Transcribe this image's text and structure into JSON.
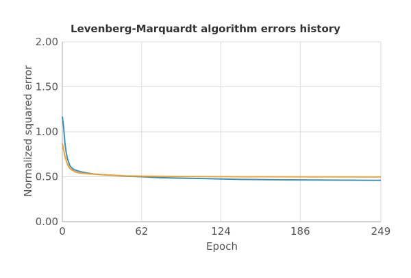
{
  "chart_data": {
    "type": "line",
    "title": "Levenberg-Marquardt algorithm errors history",
    "xlabel": "Epoch",
    "ylabel": "Normalized squared error",
    "xlim": [
      0,
      249
    ],
    "ylim": [
      0,
      2
    ],
    "x_ticks": [
      "0",
      "62",
      "124",
      "186",
      "249"
    ],
    "x_tick_values": [
      0,
      62,
      124,
      186,
      249
    ],
    "y_ticks": [
      "0.00",
      "0.50",
      "1.00",
      "1.50",
      "2.00"
    ],
    "y_tick_values": [
      0,
      0.5,
      1.0,
      1.5,
      2.0
    ],
    "grid": true,
    "series": [
      {
        "color": "#3a8fbf",
        "x": [
          0,
          1,
          2,
          3,
          4,
          5,
          6,
          8,
          10,
          12,
          15,
          20,
          25,
          30,
          40,
          50,
          62,
          75,
          90,
          110,
          124,
          140,
          160,
          186,
          200,
          220,
          249
        ],
        "values": [
          1.17,
          1.05,
          0.88,
          0.77,
          0.7,
          0.66,
          0.62,
          0.59,
          0.575,
          0.565,
          0.555,
          0.54,
          0.53,
          0.525,
          0.515,
          0.505,
          0.5,
          0.49,
          0.485,
          0.48,
          0.475,
          0.47,
          0.468,
          0.465,
          0.463,
          0.462,
          0.46
        ]
      },
      {
        "color": "#f0a030",
        "x": [
          0,
          1,
          2,
          3,
          4,
          5,
          6,
          8,
          10,
          12,
          15,
          20,
          25,
          30,
          40,
          50,
          62,
          75,
          90,
          110,
          124,
          140,
          160,
          186,
          200,
          220,
          249
        ],
        "values": [
          0.87,
          0.8,
          0.73,
          0.68,
          0.64,
          0.61,
          0.59,
          0.57,
          0.555,
          0.545,
          0.54,
          0.533,
          0.528,
          0.523,
          0.516,
          0.51,
          0.507,
          0.505,
          0.503,
          0.502,
          0.501,
          0.5,
          0.5,
          0.499,
          0.499,
          0.498,
          0.498
        ]
      }
    ]
  }
}
